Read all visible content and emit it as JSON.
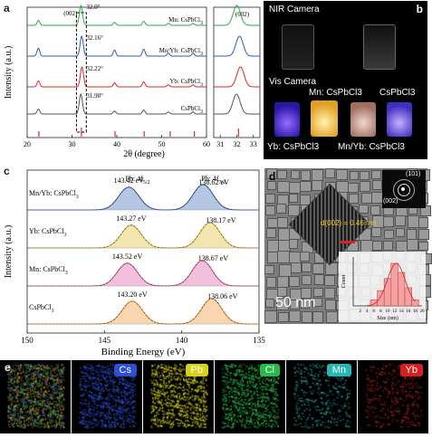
{
  "panels": {
    "a": {
      "label": "a",
      "peak_label": "(002)",
      "series": [
        {
          "name": "Mn: CsPbCl3",
          "peak_angle": "32.0°",
          "color": "#2eaa4a"
        },
        {
          "name": "Mn/Yb: CsPbCl3",
          "peak_angle": "32.16°",
          "color": "#2a5db0"
        },
        {
          "name": "Yb: CsPbCl3",
          "peak_angle": "32.22°",
          "color": "#e02424"
        },
        {
          "name": "CsPbCl3",
          "peak_angle": "31.98°",
          "color": "#555555"
        }
      ],
      "xlabel": "2θ (degree)",
      "ylabel": "Intensity (a.u.)",
      "xticks_main": [
        "20",
        "30",
        "40",
        "50",
        "60"
      ],
      "xticks_zoom": [
        "31",
        "32",
        "33"
      ],
      "zoom_peak_label": "(002)"
    },
    "b": {
      "label": "b",
      "nir_label": "NIR Camera",
      "vis_label": "Vis Camera",
      "vials": [
        "Mn: CsPbCl3",
        "CsPbCl3",
        "Yb: CsPbCl3",
        "Mn/Yb: CsPbCl3"
      ]
    },
    "c": {
      "label": "c",
      "pb_labels": [
        "Pb: 4f5/2",
        "Pb: 4f7/2"
      ],
      "samples": [
        {
          "name": "Mn/Yb: CsPbCl3",
          "e1": "143.42 eV",
          "e2": "138.62 eV",
          "color": "#2a5db0"
        },
        {
          "name": "Yb: CsPbCl3",
          "e1": "143.27 eV",
          "e2": "138.17 eV",
          "color": "#d9b51a"
        },
        {
          "name": "Mn: CsPbCl3",
          "e1": "143.52 eV",
          "e2": "138.67 eV",
          "color": "#d94a9a"
        },
        {
          "name": "CsPbCl3",
          "e1": "143.20 eV",
          "e2": "138.06 eV",
          "color": "#f08a1c"
        }
      ],
      "xlabel": "Binding Energy (eV)",
      "ylabel": "Intensity (a.u.)",
      "xticks": [
        "150",
        "145",
        "140",
        "135"
      ]
    },
    "d": {
      "label": "d",
      "lattice_label": "d(002) = 0.46 nm",
      "scale_bar": "50 nm",
      "saed_labels": [
        "(101)",
        "(002)"
      ],
      "hist_ylabel": "Count",
      "hist_xlabel": "Size (nm)",
      "hist_xticks": [
        "2",
        "4",
        "6",
        "8",
        "10",
        "12",
        "14",
        "16",
        "18",
        "20"
      ]
    },
    "e": {
      "label": "e",
      "maps": [
        {
          "name": "",
          "color": "#3a8a2a"
        },
        {
          "name": "Cs",
          "color": "#2d4fd0"
        },
        {
          "name": "Pb",
          "color": "#d6d21a"
        },
        {
          "name": "Cl",
          "color": "#2ab84a"
        },
        {
          "name": "Mn",
          "color": "#27b5b5"
        },
        {
          "name": "Yb",
          "color": "#d42020"
        }
      ]
    }
  },
  "chart_data": [
    {
      "type": "line",
      "title": "",
      "xlabel": "2θ (degree)",
      "ylabel": "Intensity (a.u.)",
      "xlim": [
        20,
        60
      ],
      "series": [
        {
          "name": "Mn: CsPbCl3",
          "peaks": [
            {
              "x": 22.5,
              "y": 0.25
            },
            {
              "x": 32.0,
              "y": 1.0
            },
            {
              "x": 39.5,
              "y": 0.15
            },
            {
              "x": 46.0,
              "y": 0.2
            },
            {
              "x": 51.5,
              "y": 0.1
            },
            {
              "x": 57.0,
              "y": 0.1
            }
          ]
        },
        {
          "name": "Mn/Yb: CsPbCl3",
          "peaks": [
            {
              "x": 22.5,
              "y": 0.4
            },
            {
              "x": 32.16,
              "y": 1.0
            },
            {
              "x": 39.5,
              "y": 0.3
            },
            {
              "x": 46.0,
              "y": 0.35
            },
            {
              "x": 51.5,
              "y": 0.15
            },
            {
              "x": 57.0,
              "y": 0.15
            }
          ]
        },
        {
          "name": "Yb: CsPbCl3",
          "peaks": [
            {
              "x": 22.5,
              "y": 0.3
            },
            {
              "x": 32.22,
              "y": 1.0
            },
            {
              "x": 39.5,
              "y": 0.2
            },
            {
              "x": 46.0,
              "y": 0.25
            },
            {
              "x": 51.5,
              "y": 0.1
            },
            {
              "x": 57.0,
              "y": 0.1
            }
          ]
        },
        {
          "name": "CsPbCl3",
          "peaks": [
            {
              "x": 22.5,
              "y": 0.25
            },
            {
              "x": 31.98,
              "y": 1.0
            },
            {
              "x": 39.5,
              "y": 0.15
            },
            {
              "x": 46.0,
              "y": 0.2
            },
            {
              "x": 51.5,
              "y": 0.1
            },
            {
              "x": 57.0,
              "y": 0.1
            }
          ]
        }
      ],
      "reference_peaks": [
        22.6,
        32.1,
        39.6,
        46.1,
        51.9,
        57.3
      ]
    },
    {
      "type": "line",
      "title": "",
      "xlabel": "Binding Energy (eV)",
      "ylabel": "Intensity (a.u.)",
      "xlim": [
        150,
        135
      ],
      "series": [
        {
          "name": "Mn/Yb: CsPbCl3",
          "peaks": [
            143.42,
            138.62
          ]
        },
        {
          "name": "Yb: CsPbCl3",
          "peaks": [
            143.27,
            138.17
          ]
        },
        {
          "name": "Mn: CsPbCl3",
          "peaks": [
            143.52,
            138.67
          ]
        },
        {
          "name": "CsPbCl3",
          "peaks": [
            143.2,
            138.06
          ]
        }
      ]
    },
    {
      "type": "bar",
      "title": "",
      "xlabel": "Size (nm)",
      "ylabel": "Count",
      "categories": [
        "6",
        "8",
        "10",
        "12",
        "14",
        "16",
        "18"
      ],
      "values": [
        2,
        5,
        9,
        14,
        11,
        6,
        2
      ]
    }
  ]
}
